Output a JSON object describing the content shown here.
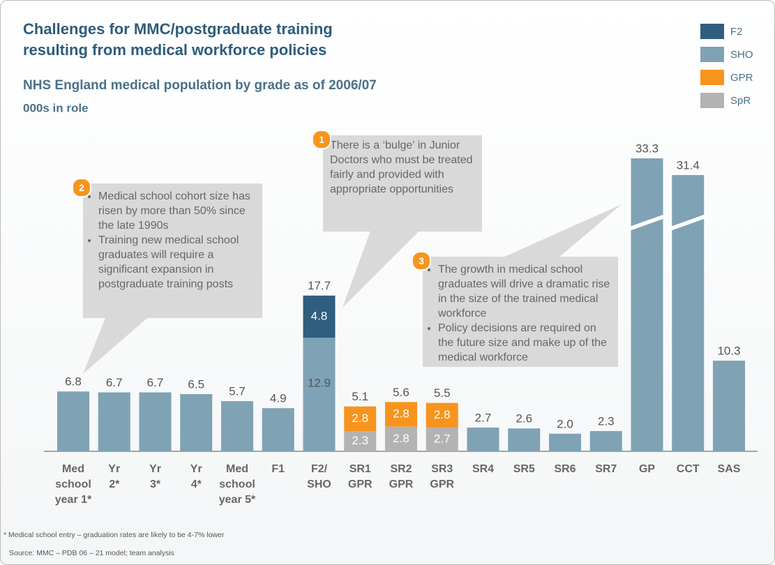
{
  "chart_data": {
    "type": "bar",
    "title": "Challenges for MMC/postgraduate training resulting from medical workforce policies",
    "subtitle": "NHS England medical population by grade as of 2006/07",
    "unit_label": "000s in role",
    "stacked": true,
    "categories": [
      [
        "Med",
        "school",
        "year 1*"
      ],
      [
        "Yr",
        "2*"
      ],
      [
        "Yr",
        "3*"
      ],
      [
        "Yr",
        "4*"
      ],
      [
        "Med",
        "school",
        "year 5*"
      ],
      [
        "F1"
      ],
      [
        "F2/",
        "SHO"
      ],
      [
        "SR1",
        "GPR"
      ],
      [
        "SR2",
        "GPR"
      ],
      [
        "SR3",
        "GPR"
      ],
      [
        "SR4"
      ],
      [
        "SR5"
      ],
      [
        "SR6"
      ],
      [
        "SR7"
      ],
      [
        "GP"
      ],
      [
        "CCT"
      ],
      [
        "SAS"
      ]
    ],
    "series": [
      {
        "name": "SpR",
        "color": "#b3b3b3",
        "values": [
          null,
          null,
          null,
          null,
          null,
          null,
          null,
          2.3,
          2.8,
          2.7,
          null,
          null,
          null,
          null,
          null,
          null,
          null
        ]
      },
      {
        "name": "GPR",
        "color": "#f7941d",
        "values": [
          null,
          null,
          null,
          null,
          null,
          null,
          null,
          2.8,
          2.8,
          2.8,
          null,
          null,
          null,
          null,
          null,
          null,
          null
        ]
      },
      {
        "name": "SHO",
        "color": "#7fa2b5",
        "values": [
          6.8,
          6.7,
          6.7,
          6.5,
          5.7,
          4.9,
          12.9,
          null,
          null,
          null,
          2.7,
          2.6,
          2.0,
          2.3,
          33.3,
          31.4,
          10.3
        ],
        "value_labels": [
          "6.8",
          "6.7",
          "6.7",
          "6.5",
          "5.7",
          "4.9",
          "12.9",
          null,
          null,
          null,
          "2.7",
          "2.6",
          "2.0",
          "2.3",
          "33.3",
          "31.4",
          "10.3"
        ]
      },
      {
        "name": "F2",
        "color": "#2f5e7e",
        "values": [
          null,
          null,
          null,
          null,
          null,
          null,
          4.8,
          null,
          null,
          null,
          null,
          null,
          null,
          null,
          null,
          null,
          null
        ]
      }
    ],
    "totals": [
      null,
      null,
      null,
      null,
      null,
      null,
      17.7,
      5.1,
      5.6,
      5.5,
      null,
      null,
      null,
      null,
      null,
      null,
      null
    ],
    "legend": "top-right",
    "annotations": [
      {
        "number": "1",
        "text": "There is a ‘bulge’ in Junior Doctors who must be treated fairly and provided with appropriate opportunities"
      },
      {
        "number": "2",
        "bullets": [
          "Medical school cohort size has risen by more than 50% since  the late 1990s",
          "Training new medical school graduates will require a significant expansion in postgraduate training posts"
        ]
      },
      {
        "number": "3",
        "bullets": [
          "The growth in medical school graduates will drive a dramatic rise in the size of the trained medical workforce",
          "Policy decisions are required on the future size and make up of the medical workforce"
        ]
      }
    ],
    "footnote": "* Medical school entry – graduation rates are likely to be 4-7% lower",
    "source": "Source: MMC – PDB 06 – 21 model; team analysis"
  }
}
